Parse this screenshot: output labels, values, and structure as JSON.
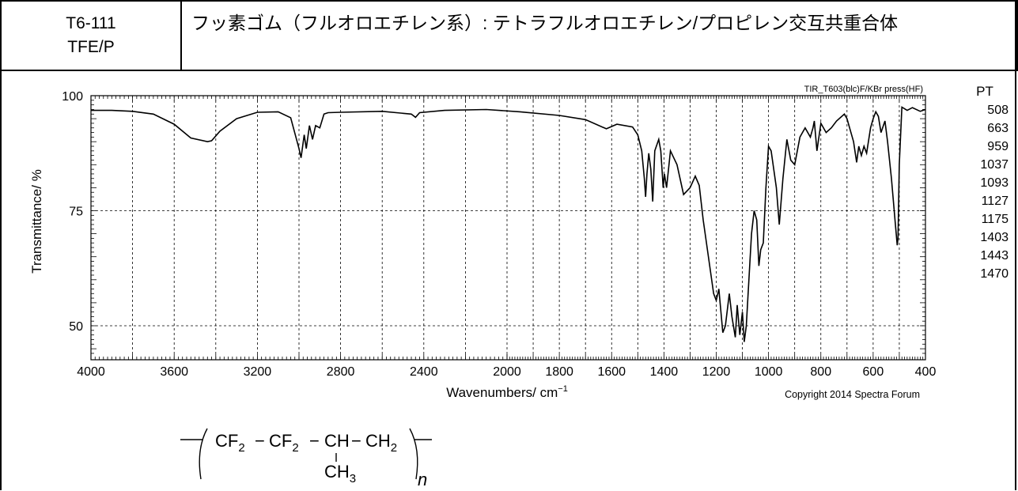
{
  "header": {
    "code": "T6-111",
    "abbreviation": "TFE/P",
    "title": "フッ素ゴム（フルオロエチレン系）: テトラフルオロエチレン/プロピレン交互共重合体"
  },
  "chart_data": {
    "type": "line",
    "title": "",
    "xlabel": "Wavenumbers/ cm",
    "xlabel_superscript": "−1",
    "ylabel": "Transmittance/ %",
    "xlim": [
      4000,
      400
    ],
    "ylim": [
      44,
      100
    ],
    "x_ticks": [
      4000,
      3600,
      3200,
      2800,
      2400,
      2000,
      1800,
      1600,
      1400,
      1200,
      1000,
      800,
      600,
      400
    ],
    "y_ticks": [
      100,
      75,
      50
    ],
    "grid": true,
    "instrument_label": "TIR_T603(blc)F/KBr press(HF)",
    "copyright": "Copyright 2014 Spectra Forum",
    "series": [
      {
        "x": [
          4000,
          3900,
          3800,
          3700,
          3600,
          3520,
          3440,
          3420,
          3380,
          3300,
          3200,
          3100,
          3040,
          3000,
          2990,
          2975,
          2965,
          2950,
          2935,
          2920,
          2900,
          2880,
          2860,
          2800,
          2600,
          2460,
          2440,
          2420,
          2300,
          2100,
          1950,
          1800,
          1700,
          1620,
          1580,
          1520,
          1500,
          1485,
          1475,
          1470,
          1465,
          1458,
          1450,
          1443,
          1435,
          1420,
          1412,
          1405,
          1403,
          1398,
          1390,
          1375,
          1350,
          1325,
          1300,
          1280,
          1265,
          1250,
          1230,
          1210,
          1200,
          1190,
          1175,
          1165,
          1150,
          1140,
          1127,
          1120,
          1110,
          1100,
          1093,
          1085,
          1075,
          1065,
          1055,
          1045,
          1037,
          1030,
          1020,
          1010,
          1000,
          990,
          970,
          959,
          945,
          930,
          915,
          900,
          880,
          860,
          840,
          830,
          825,
          815,
          800,
          780,
          760,
          740,
          710,
          700,
          690,
          675,
          663,
          655,
          645,
          635,
          625,
          610,
          600,
          590,
          580,
          570,
          555,
          545,
          530,
          515,
          508,
          505,
          500,
          490,
          470,
          450,
          420,
          400
        ],
        "y": [
          96.8,
          96.8,
          96.6,
          96.0,
          93.8,
          90.8,
          90.0,
          90.2,
          92.3,
          95.0,
          96.4,
          96.5,
          95.2,
          88.5,
          86.5,
          91.5,
          88.5,
          93.5,
          90.5,
          93.5,
          93.0,
          96.0,
          96.3,
          96.4,
          96.6,
          96.0,
          95.3,
          96.3,
          96.8,
          97.0,
          96.5,
          95.7,
          94.8,
          92.8,
          93.8,
          93.2,
          91.5,
          88.0,
          82.0,
          78.0,
          83.0,
          87.5,
          84.0,
          77.0,
          88.0,
          90.5,
          88.0,
          82.0,
          80.0,
          83.0,
          80.0,
          88.0,
          85.0,
          78.5,
          80.0,
          82.5,
          80.5,
          73.0,
          65.0,
          57.0,
          55.5,
          58.0,
          48.5,
          50.0,
          57.0,
          52.0,
          47.5,
          54.5,
          48.0,
          53.0,
          46.5,
          50.0,
          60.0,
          70.0,
          75.0,
          73.0,
          63.0,
          66.5,
          68.0,
          80.0,
          89.0,
          88.0,
          80.0,
          72.0,
          82.0,
          90.5,
          86.0,
          85.0,
          91.0,
          93.0,
          91.0,
          93.0,
          94.5,
          88.0,
          94.0,
          92.0,
          93.0,
          94.5,
          96.0,
          95.0,
          93.0,
          90.0,
          85.5,
          89.0,
          87.0,
          89.0,
          87.5,
          93.0,
          95.0,
          96.5,
          95.5,
          92.0,
          94.5,
          90.0,
          82.0,
          72.0,
          67.5,
          69.0,
          85.0,
          97.5,
          96.8,
          97.4,
          96.6,
          97.0
        ]
      }
    ]
  },
  "peak_table": {
    "title": "PT",
    "values": [
      "508",
      "663",
      "959",
      "1037",
      "1093",
      "1127",
      "1175",
      "1403",
      "1443",
      "1470"
    ]
  },
  "formula": {
    "unit1": "CF",
    "sub1": "2",
    "unit2": "CF",
    "sub2": "2",
    "unit3": "CH",
    "unit4": "CH",
    "sub4": "2",
    "branch": "CH",
    "branch_sub": "3",
    "dash": "−",
    "repeat": "n"
  }
}
